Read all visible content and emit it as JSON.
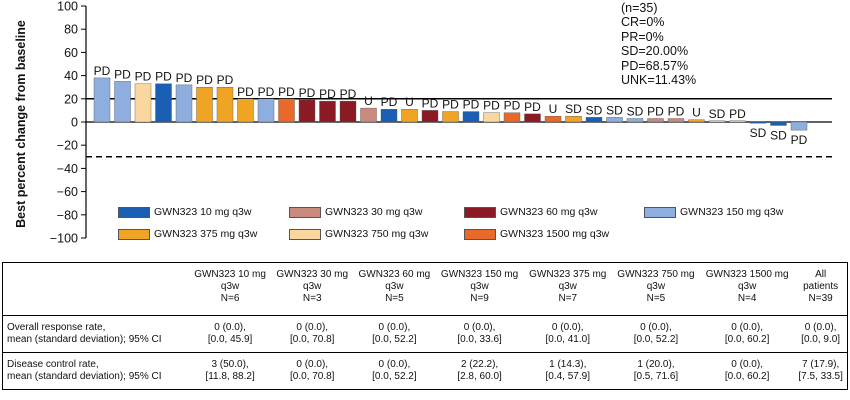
{
  "chart_data": {
    "type": "bar",
    "ylabel": "Best percent change from baseline",
    "ylim": [
      -100,
      100
    ],
    "yticks": [
      100,
      80,
      60,
      40,
      20,
      0,
      -20,
      -40,
      -60,
      -80,
      -100
    ],
    "reference_lines": [
      {
        "y": 20,
        "style": "solid"
      },
      {
        "y": -30,
        "style": "dashed"
      }
    ],
    "colors": {
      "GWN323 10 mg q3w": "#1a5fb4",
      "GWN323 30 mg q3w": "#c98a7d",
      "GWN323 60 mg q3w": "#8b1a24",
      "GWN323 150 mg q3w": "#8eaee0",
      "GWN323 375 mg q3w": "#f0a424",
      "GWN323 750 mg q3w": "#fbd7a0",
      "GWN323 1500 mg q3w": "#e8692a"
    },
    "series_order": [
      "GWN323 10 mg q3w",
      "GWN323 30 mg q3w",
      "GWN323 60 mg q3w",
      "GWN323 150 mg q3w",
      "GWN323 375 mg q3w",
      "GWN323 750 mg q3w",
      "GWN323 1500 mg q3w"
    ],
    "bars": [
      {
        "value": 38,
        "response": "PD",
        "dose": "GWN323 150 mg q3w"
      },
      {
        "value": 35,
        "response": "PD",
        "dose": "GWN323 150 mg q3w"
      },
      {
        "value": 33,
        "response": "PD",
        "dose": "GWN323 750 mg q3w"
      },
      {
        "value": 33,
        "response": "PD",
        "dose": "GWN323 10 mg q3w"
      },
      {
        "value": 32,
        "response": "PD",
        "dose": "GWN323 150 mg q3w"
      },
      {
        "value": 30,
        "response": "PD",
        "dose": "GWN323 375 mg q3w"
      },
      {
        "value": 30,
        "response": "PD",
        "dose": "GWN323 375 mg q3w"
      },
      {
        "value": 20,
        "response": "PD",
        "dose": "GWN323 375 mg q3w"
      },
      {
        "value": 20,
        "response": "PD",
        "dose": "GWN323 150 mg q3w"
      },
      {
        "value": 20,
        "response": "PD",
        "dose": "GWN323 1500 mg q3w"
      },
      {
        "value": 19,
        "response": "PD",
        "dose": "GWN323 60 mg q3w"
      },
      {
        "value": 18,
        "response": "PD",
        "dose": "GWN323 60 mg q3w"
      },
      {
        "value": 18,
        "response": "PD",
        "dose": "GWN323 60 mg q3w"
      },
      {
        "value": 12,
        "response": "U",
        "dose": "GWN323 30 mg q3w"
      },
      {
        "value": 11,
        "response": "PD",
        "dose": "GWN323 10 mg q3w"
      },
      {
        "value": 11,
        "response": "U",
        "dose": "GWN323 375 mg q3w"
      },
      {
        "value": 10,
        "response": "PD",
        "dose": "GWN323 60 mg q3w"
      },
      {
        "value": 9,
        "response": "PD",
        "dose": "GWN323 375 mg q3w"
      },
      {
        "value": 9,
        "response": "PD",
        "dose": "GWN323 10 mg q3w"
      },
      {
        "value": 8,
        "response": "PD",
        "dose": "GWN323 750 mg q3w"
      },
      {
        "value": 8,
        "response": "PD",
        "dose": "GWN323 1500 mg q3w"
      },
      {
        "value": 7,
        "response": "PD",
        "dose": "GWN323 60 mg q3w"
      },
      {
        "value": 5,
        "response": "U",
        "dose": "GWN323 1500 mg q3w"
      },
      {
        "value": 5,
        "response": "SD",
        "dose": "GWN323 375 mg q3w"
      },
      {
        "value": 4,
        "response": "SD",
        "dose": "GWN323 10 mg q3w"
      },
      {
        "value": 4,
        "response": "SD",
        "dose": "GWN323 150 mg q3w"
      },
      {
        "value": 3,
        "response": "SD",
        "dose": "GWN323 150 mg q3w"
      },
      {
        "value": 3,
        "response": "PD",
        "dose": "GWN323 30 mg q3w"
      },
      {
        "value": 3,
        "response": "PD",
        "dose": "GWN323 30 mg q3w"
      },
      {
        "value": 2,
        "response": "U",
        "dose": "GWN323 375 mg q3w"
      },
      {
        "value": 1,
        "response": "SD",
        "dose": "GWN323 750 mg q3w"
      },
      {
        "value": 0,
        "response": "PD",
        "dose": "GWN323 750 mg q3w"
      },
      {
        "value": -1,
        "response": "SD",
        "dose": "GWN323 10 mg q3w"
      },
      {
        "value": -3,
        "response": "SD",
        "dose": "GWN323 10 mg q3w"
      },
      {
        "value": -7,
        "response": "PD",
        "dose": "GWN323 150 mg q3w"
      }
    ],
    "annotations": [
      "(n=35)",
      "CR=0%",
      "PR=0%",
      "SD=20.00%",
      "PD=68.57%",
      "UNK=11.43%"
    ],
    "legend": [
      "GWN323 10 mg q3w",
      "GWN323 30 mg q3w",
      "GWN323 60 mg q3w",
      "GWN323 150 mg q3w",
      "GWN323 375 mg q3w",
      "GWN323 750 mg q3w",
      "GWN323 1500 mg q3w"
    ],
    "grid": false,
    "legend_placement": "bottom"
  },
  "table": {
    "headers": [
      {
        "l1": "GWN323 10 mg",
        "l2": "q3w",
        "l3": "N=6"
      },
      {
        "l1": "GWN323 30 mg",
        "l2": "q3w",
        "l3": "N=3"
      },
      {
        "l1": "GWN323 60 mg",
        "l2": "q3w",
        "l3": "N=5"
      },
      {
        "l1": "GWN323 150 mg",
        "l2": "q3w",
        "l3": "N=9"
      },
      {
        "l1": "GWN323 375 mg",
        "l2": "q3w",
        "l3": "N=7"
      },
      {
        "l1": "GWN323 750 mg",
        "l2": "q3w",
        "l3": "N=5"
      },
      {
        "l1": "GWN323 1500 mg",
        "l2": "q3w",
        "l3": "N=4"
      },
      {
        "l1": "All",
        "l2": "patients",
        "l3": "N=39"
      }
    ],
    "rows": [
      {
        "label1": "Overall response rate,",
        "label2": "mean (standard deviation); 95% CI",
        "cells": [
          {
            "a": "0 (0.0),",
            "b": "[0.0, 45.9]"
          },
          {
            "a": "0 (0.0),",
            "b": "[0.0, 70.8]"
          },
          {
            "a": "0 (0.0),",
            "b": "[0.0, 52.2]"
          },
          {
            "a": "0 (0.0),",
            "b": "[0.0, 33.6]"
          },
          {
            "a": "0 (0.0),",
            "b": "[0.0, 41.0]"
          },
          {
            "a": "0 (0.0),",
            "b": "[0.0, 52.2]"
          },
          {
            "a": "0 (0.0),",
            "b": "[0.0, 60.2]"
          },
          {
            "a": "0 (0.0),",
            "b": "[0.0, 9.0]"
          }
        ]
      },
      {
        "label1": "Disease control rate,",
        "label2": "mean (standard deviation); 95% CI",
        "cells": [
          {
            "a": "3 (50.0),",
            "b": "[11.8, 88.2]"
          },
          {
            "a": "0 (0.0),",
            "b": "[0.0, 70.8]"
          },
          {
            "a": "0 (0.0),",
            "b": "[0.0, 52.2]"
          },
          {
            "a": "2 (22.2),",
            "b": "[2.8, 60.0]"
          },
          {
            "a": "1 (14.3),",
            "b": "[0.4, 57.9]"
          },
          {
            "a": "1 (20.0),",
            "b": "[0.5, 71.6]"
          },
          {
            "a": "0 (0.0),",
            "b": "[0.0, 60.2]"
          },
          {
            "a": "7 (17.9),",
            "b": "[7.5, 33.5]"
          }
        ]
      }
    ]
  }
}
